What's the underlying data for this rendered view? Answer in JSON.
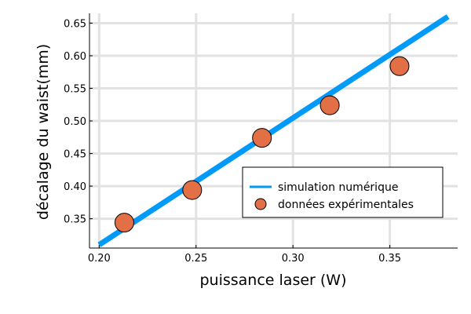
{
  "chart_data": {
    "type": "scatter",
    "xlabel": "puissance laser (W)",
    "ylabel": "décalage du waist(mm)",
    "xlim": [
      0.195,
      0.385
    ],
    "ylim": [
      0.305,
      0.665
    ],
    "xticks": [
      0.2,
      0.25,
      0.3,
      0.35
    ],
    "xtick_labels": [
      "0.20",
      "0.25",
      "0.30",
      "0.35"
    ],
    "yticks": [
      0.35,
      0.4,
      0.45,
      0.5,
      0.55,
      0.6,
      0.65
    ],
    "ytick_labels": [
      "0.35",
      "0.40",
      "0.45",
      "0.50",
      "0.55",
      "0.60",
      "0.65"
    ],
    "grid": true,
    "legend_position": "bottom-right",
    "series": [
      {
        "name": "simulation numérique",
        "type": "line",
        "color": "#009AFA",
        "x": [
          0.2,
          0.38
        ],
        "y": [
          0.31,
          0.66
        ]
      },
      {
        "name": "données expérimentales",
        "type": "scatter",
        "color": "#E26F46",
        "x": [
          0.213,
          0.248,
          0.284,
          0.319,
          0.355
        ],
        "y": [
          0.344,
          0.394,
          0.474,
          0.524,
          0.584
        ]
      }
    ]
  }
}
